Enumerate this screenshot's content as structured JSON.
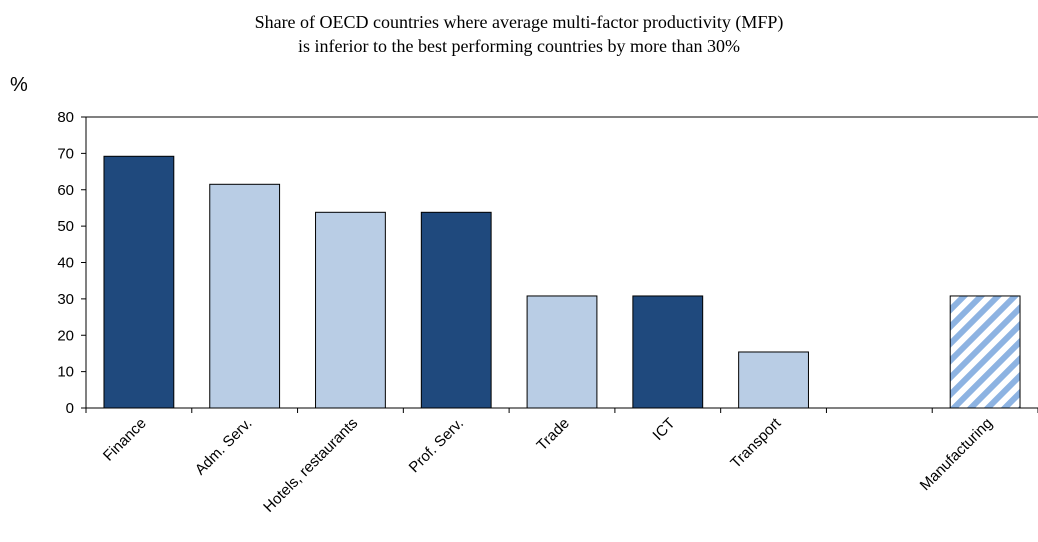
{
  "chart_data": {
    "type": "bar",
    "title": "Share of OECD countries where average multi-factor productivity (MFP)",
    "subtitle": "is inferior to the best performing countries by more than 30%",
    "ylabel": "%",
    "xlabel": "",
    "ylim": [
      0,
      80
    ],
    "yticks": [
      0,
      10,
      20,
      30,
      40,
      50,
      60,
      70,
      80
    ],
    "grid": false,
    "categories": [
      "Finance",
      "Adm. Serv.",
      "Hotels, restaurants",
      "Prof. Serv.",
      "Trade",
      "ICT",
      "Transport",
      "",
      "Manufacturing"
    ],
    "values": [
      69.2,
      61.5,
      53.8,
      53.8,
      30.8,
      30.8,
      15.4,
      null,
      30.8
    ],
    "bar_styles": [
      "dark",
      "light",
      "light",
      "dark",
      "light",
      "dark",
      "light",
      "none",
      "hatched"
    ],
    "colors": {
      "dark": "#1f497d",
      "light": "#b9cde5",
      "hatch": "#8db3e2",
      "outline": "#000000"
    }
  }
}
